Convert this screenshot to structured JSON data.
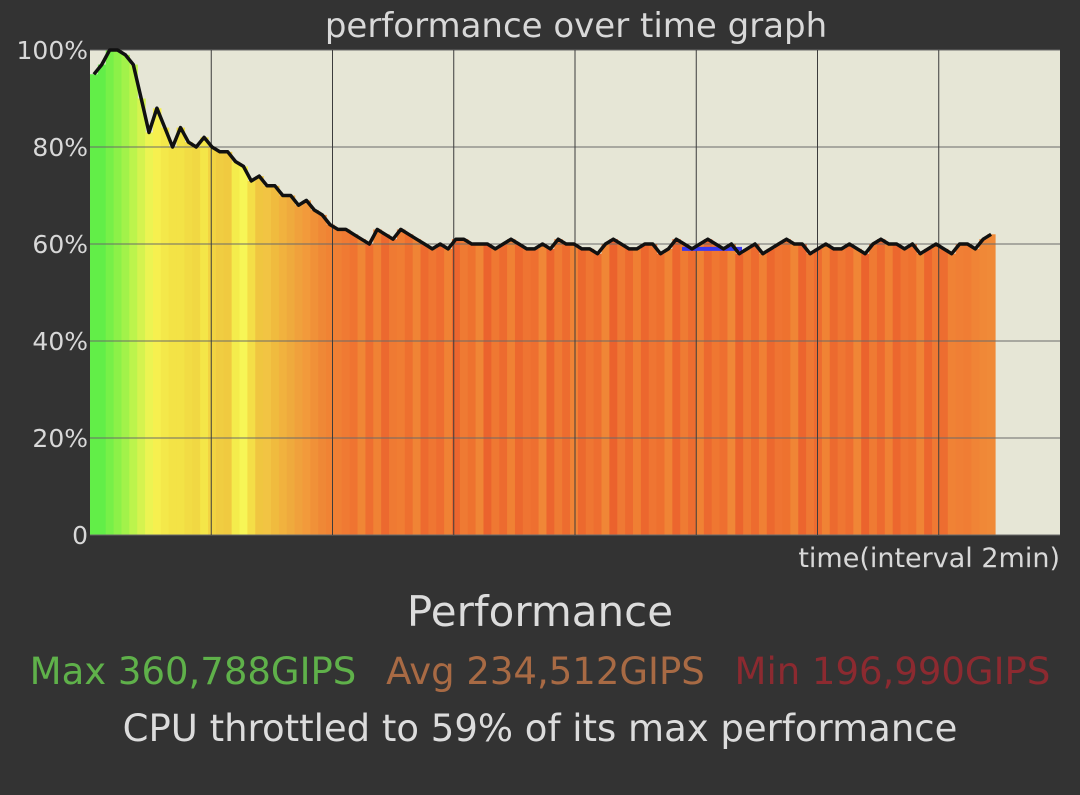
{
  "chart_data": {
    "type": "area",
    "title": "performance over time graph",
    "xlabel": "time(interval 2min)",
    "ylabel": "",
    "ylim": [
      0,
      100
    ],
    "y_ticks": [
      "0",
      "20%",
      "40%",
      "60%",
      "80%",
      "100%"
    ],
    "x_gridlines": 8,
    "grid": true,
    "series": [
      {
        "values": [
          95,
          97,
          100,
          100,
          99,
          97,
          90,
          83,
          88,
          84,
          80,
          84,
          81,
          80,
          82,
          80,
          79,
          79,
          77,
          76,
          73,
          74,
          72,
          72,
          70,
          70,
          68,
          69,
          67,
          66,
          64,
          63,
          63,
          62,
          61,
          60,
          63,
          62,
          61,
          63,
          62,
          61,
          60,
          59,
          60,
          59,
          61,
          61,
          60,
          60,
          60,
          59,
          60,
          61,
          60,
          59,
          59,
          60,
          59,
          61,
          60,
          60,
          59,
          59,
          58,
          60,
          61,
          60,
          59,
          59,
          60,
          60,
          58,
          59,
          61,
          60,
          59,
          60,
          61,
          60,
          59,
          60,
          58,
          59,
          60,
          58,
          59,
          60,
          61,
          60,
          60,
          58,
          59,
          60,
          59,
          59,
          60,
          59,
          58,
          60,
          61,
          60,
          60,
          59,
          60,
          58,
          59,
          60,
          59,
          58,
          60,
          60,
          59,
          61,
          62
        ],
        "colors": [
          "#62ee48",
          "#62ee48",
          "#77f048",
          "#8cf148",
          "#a2f24a",
          "#bcf44c",
          "#d5f34f",
          "#ecf452",
          "#f6f04f",
          "#f4e84a",
          "#f3e346",
          "#f3e346",
          "#f2dc44",
          "#f1d843",
          "#f4e648",
          "#f2d442",
          "#f0cd41",
          "#f0ca40",
          "#f4ec4c",
          "#f7f656",
          "#f4de47",
          "#f0c640",
          "#f2c443",
          "#f0bb3e",
          "#f1b23e",
          "#efaa3d",
          "#f0a13c",
          "#f29a3b",
          "#f09138",
          "#ef8836",
          "#f08334",
          "#f08034",
          "#f07a33",
          "#ef7431",
          "#f08635",
          "#ee6e30",
          "#f08234",
          "#ec692f",
          "#ef7a33",
          "#f07d33",
          "#ee702f",
          "#f08435",
          "#ed6a2f",
          "#ef7632",
          "#ee6d30",
          "#f08234",
          "#ec662e",
          "#ef7a33",
          "#ee722f",
          "#f08636",
          "#eb632d",
          "#ef7832",
          "#ed6b2f",
          "#f08134",
          "#ec682e",
          "#ef7432",
          "#ee6f30",
          "#f08737",
          "#ec652e",
          "#ef7b33",
          "#ed6c2f",
          "#f08335",
          "#ec692e",
          "#ef7632",
          "#ee6e30",
          "#f08636",
          "#eb622d",
          "#ef7934",
          "#ed6a2f",
          "#f07f33",
          "#ec672e",
          "#ef7532",
          "#ee702f",
          "#f08435",
          "#ec662e",
          "#ef7b33",
          "#ed6d30",
          "#f08234",
          "#ec692f",
          "#ef7731",
          "#ee6f30",
          "#f08737",
          "#eb642d",
          "#ef7a33",
          "#ed6b2f",
          "#f08034",
          "#ec682e",
          "#ef7432",
          "#ee722f",
          "#f08535",
          "#ec652e",
          "#ef7833",
          "#ed6c30",
          "#f08334",
          "#ec6a2f",
          "#ef7632",
          "#ee6e30",
          "#f08636",
          "#eb632d",
          "#ef7a33",
          "#ed6a2f",
          "#f08134",
          "#ec672e",
          "#ef7532",
          "#ee712f",
          "#f08435",
          "#ec662e",
          "#ef7933",
          "#ed6d30",
          "#f08235",
          "#f07f35",
          "#f07d34",
          "#f08436",
          "#f08837",
          "#f08a38"
        ]
      }
    ],
    "reference_line": {
      "y": 59,
      "color": "#3a3af0"
    }
  },
  "summary": {
    "heading": "Performance",
    "max": "Max 360,788GIPS",
    "avg": "Avg 234,512GIPS",
    "min": "Min 196,990GIPS",
    "throttle": "CPU throttled to 59% of its max performance"
  },
  "colors": {
    "background": "#333333",
    "plot_background": "#e6e6d6",
    "max": "#5fb14a",
    "avg": "#a86a44",
    "min": "#8c2a30",
    "text": "#dcdcdc"
  }
}
